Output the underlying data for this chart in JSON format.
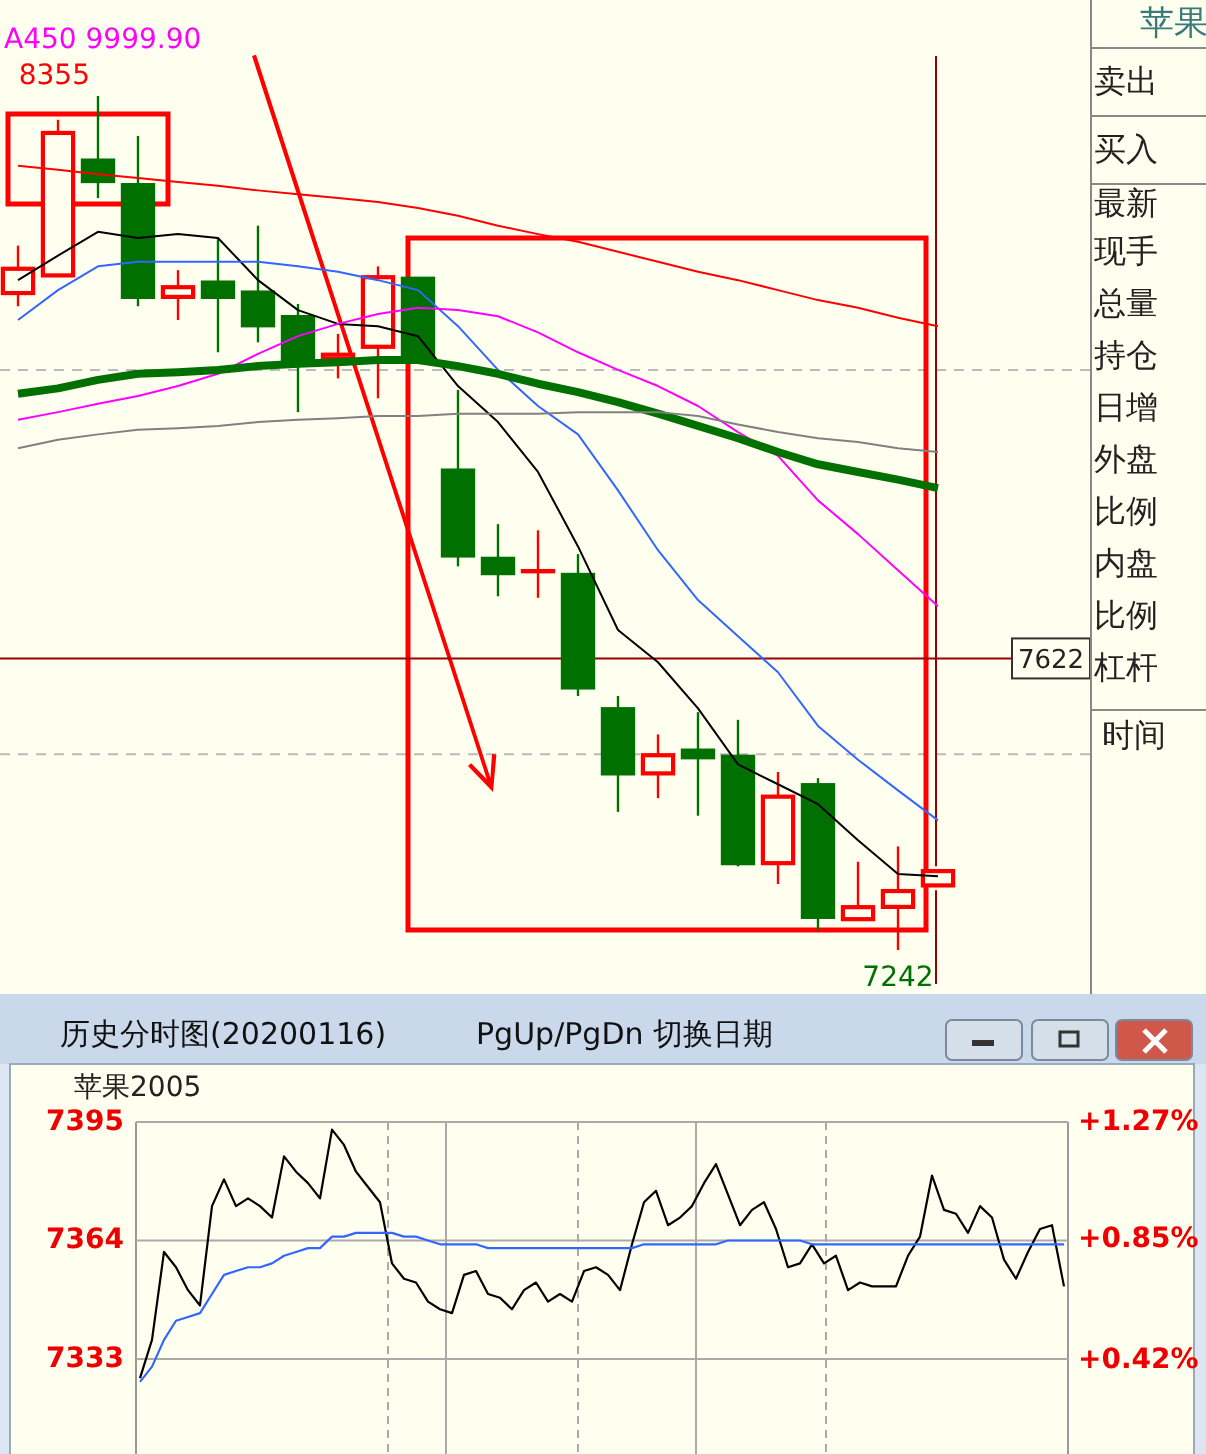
{
  "chart_data": [
    {
      "type": "candlestick",
      "categories": [
        null,
        null,
        null,
        null,
        null,
        null,
        null,
        null,
        null,
        null,
        null,
        null,
        null,
        null,
        null,
        null,
        null,
        null,
        null,
        null,
        null,
        null,
        null,
        null
      ],
      "ohlc": [
        [
          8097,
          8160,
          8081,
          8131
        ],
        [
          8120,
          8324,
          8120,
          8308
        ],
        [
          8272,
          8355,
          8222,
          8243
        ],
        [
          8240,
          8303,
          8081,
          8092
        ],
        [
          8092,
          8128,
          8063,
          8107
        ],
        [
          8113,
          8170,
          8021,
          8092
        ],
        [
          8100,
          8186,
          8034,
          8055
        ],
        [
          8068,
          8084,
          7943,
          8008
        ],
        [
          8011,
          8045,
          7987,
          8019
        ],
        [
          8027,
          8133,
          7961,
          8120
        ],
        [
          8118,
          8118,
          8006,
          8011
        ],
        [
          7868,
          7972,
          7742,
          7755
        ],
        [
          7753,
          7797,
          7703,
          7732
        ],
        [
          7737,
          7789,
          7701,
          7737
        ],
        [
          7732,
          7758,
          7573,
          7583
        ],
        [
          7557,
          7573,
          7422,
          7471
        ],
        [
          7471,
          7523,
          7440,
          7497
        ],
        [
          7503,
          7552,
          7417,
          7492
        ],
        [
          7495,
          7542,
          7351,
          7354
        ],
        [
          7354,
          7474,
          7328,
          7443
        ],
        [
          7458,
          7466,
          7268,
          7284
        ],
        [
          7281,
          7357,
          7281,
          7299
        ],
        [
          7297,
          7377,
          7242,
          7320
        ],
        [
          7325,
          7346,
          7325,
          7346
        ]
      ],
      "series": [
        {
          "type": "line",
          "color": "#000000",
          "values": [
            8115,
            8147,
            8178,
            8170,
            8175,
            8170,
            8115,
            8076,
            8058,
            8055,
            8042,
            7977,
            7930,
            7865,
            7768,
            7659,
            7617,
            7557,
            7484,
            7458,
            7432,
            7385,
            7341,
            7338
          ]
        },
        {
          "type": "line",
          "color": "#3366ff",
          "values": [
            8063,
            8102,
            8133,
            8139,
            8139,
            8139,
            8139,
            8133,
            8126,
            8115,
            8102,
            8055,
            7998,
            7951,
            7914,
            7841,
            7763,
            7698,
            7651,
            7604,
            7534,
            7490,
            7450,
            7411
          ]
        },
        {
          "type": "line",
          "color": "#ff00ff",
          "values": [
            7933,
            7943,
            7954,
            7964,
            7977,
            7993,
            8019,
            8042,
            8058,
            8071,
            8079,
            8076,
            8068,
            8047,
            8021,
            7998,
            7977,
            7951,
            7917,
            7886,
            7828,
            7784,
            7737,
            7690
          ]
        },
        {
          "type": "line",
          "color": "#007000",
          "values": [
            7967,
            7974,
            7985,
            7993,
            7995,
            7998,
            8003,
            8006,
            8008,
            8011,
            8011,
            8003,
            7993,
            7980,
            7969,
            7956,
            7941,
            7925,
            7909,
            7891,
            7875,
            7865,
            7855,
            7844
          ]
        },
        {
          "type": "line",
          "color": "#808080",
          "values": [
            7896,
            7907,
            7914,
            7920,
            7922,
            7925,
            7930,
            7933,
            7935,
            7938,
            7938,
            7941,
            7941,
            7941,
            7943,
            7943,
            7943,
            7938,
            7927,
            7917,
            7909,
            7904,
            7896,
            7891
          ]
        },
        {
          "type": "line",
          "color": "#ff0000",
          "values": [
            8264,
            8259,
            8253,
            8248,
            8243,
            8238,
            8232,
            8227,
            8222,
            8217,
            8209,
            8199,
            8186,
            8175,
            8165,
            8152,
            8139,
            8126,
            8115,
            8102,
            8089,
            8079,
            8066,
            8055
          ]
        }
      ],
      "ref_lines": [
        {
          "axis": "y",
          "value": 7622,
          "label": "7622",
          "color": "#990000"
        }
      ],
      "yticks": [
        {
          "value": 7998,
          "label": null
        },
        {
          "value": 7497,
          "label": null
        }
      ],
      "grid": "y",
      "annotations": [
        "8355",
        "7242",
        "A450 9999.90"
      ]
    },
    {
      "type": "other",
      "title": "苹果",
      "annotations": [
        "卖出",
        "买入",
        "最新",
        "现手",
        "总量",
        "持仓",
        "日增",
        "外盘",
        "比例",
        "内盘",
        "比例",
        "杠杆",
        "时间"
      ]
    },
    {
      "type": "line",
      "title": "历史分时图(20200116)",
      "subtitle": "苹果2005",
      "annotations": [
        "PgUp/PgDn 切换日期"
      ],
      "categories": [
        null,
        null,
        null,
        null,
        null,
        null,
        null,
        null,
        null,
        null,
        null,
        null,
        null,
        null,
        null,
        null,
        null,
        null,
        null,
        null,
        null,
        null,
        null,
        null,
        null,
        null,
        null,
        null,
        null,
        null,
        null,
        null,
        null,
        null,
        null,
        null,
        null,
        null,
        null,
        null,
        null,
        null,
        null,
        null,
        null,
        null,
        null,
        null,
        null,
        null,
        null,
        null,
        null,
        null,
        null,
        null,
        null,
        null,
        null,
        null,
        null,
        null,
        null,
        null,
        null,
        null,
        null,
        null,
        null,
        null,
        null,
        null,
        null,
        null,
        null,
        null,
        null,
        null
      ],
      "ylim": [
        7305,
        7395
      ],
      "yticks": [
        7333,
        7364,
        7395
      ],
      "y2lim": [
        0.04,
        1.27
      ],
      "y2ticks": [
        {
          "value": 0.42,
          "label": "+0.42%"
        },
        {
          "value": 0.85,
          "label": "+0.85%"
        },
        {
          "value": 1.27,
          "label": "+1.27%"
        }
      ],
      "grid": "y",
      "series": [
        {
          "color": "#000000",
          "values": [
            7328,
            7338,
            7361,
            7357,
            7351,
            7347,
            7373,
            7380,
            7373,
            7375,
            7373,
            7370,
            7386,
            7382,
            7379,
            7375,
            7393,
            7389,
            7382,
            7378,
            7374,
            7358,
            7354,
            7353,
            7348,
            7346,
            7345,
            7355,
            7356,
            7350,
            7349,
            7346,
            7351,
            7353,
            7348,
            7350,
            7348,
            7356,
            7357,
            7355,
            7351,
            7363,
            7374,
            7377,
            7368,
            7370,
            7373,
            7379,
            7384,
            7376,
            7368,
            7372,
            7374,
            7367,
            7357,
            7358,
            7363,
            7358,
            7360,
            7351,
            7353,
            7352,
            7352,
            7352,
            7360,
            7365,
            7381,
            7372,
            7371,
            7366,
            7373,
            7370,
            7359,
            7354,
            7361,
            7367,
            7368,
            7352
          ]
        },
        {
          "color": "#3366ff",
          "values": [
            7327,
            7331,
            7338,
            7343,
            7344,
            7345,
            7350,
            7355,
            7356,
            7357,
            7357,
            7358,
            7360,
            7361,
            7362,
            7362,
            7365,
            7365,
            7366,
            7366,
            7366,
            7366,
            7365,
            7365,
            7364,
            7363,
            7363,
            7363,
            7363,
            7362,
            7362,
            7362,
            7362,
            7362,
            7362,
            7362,
            7362,
            7362,
            7362,
            7362,
            7362,
            7362,
            7363,
            7363,
            7363,
            7363,
            7363,
            7363,
            7363,
            7364,
            7364,
            7364,
            7364,
            7364,
            7364,
            7364,
            7363,
            7363,
            7363,
            7363,
            7363,
            7363,
            7363,
            7363,
            7363,
            7363,
            7363,
            7363,
            7363,
            7363,
            7363,
            7363,
            7363,
            7363,
            7363,
            7363,
            7363,
            7363
          ]
        }
      ]
    }
  ]
}
